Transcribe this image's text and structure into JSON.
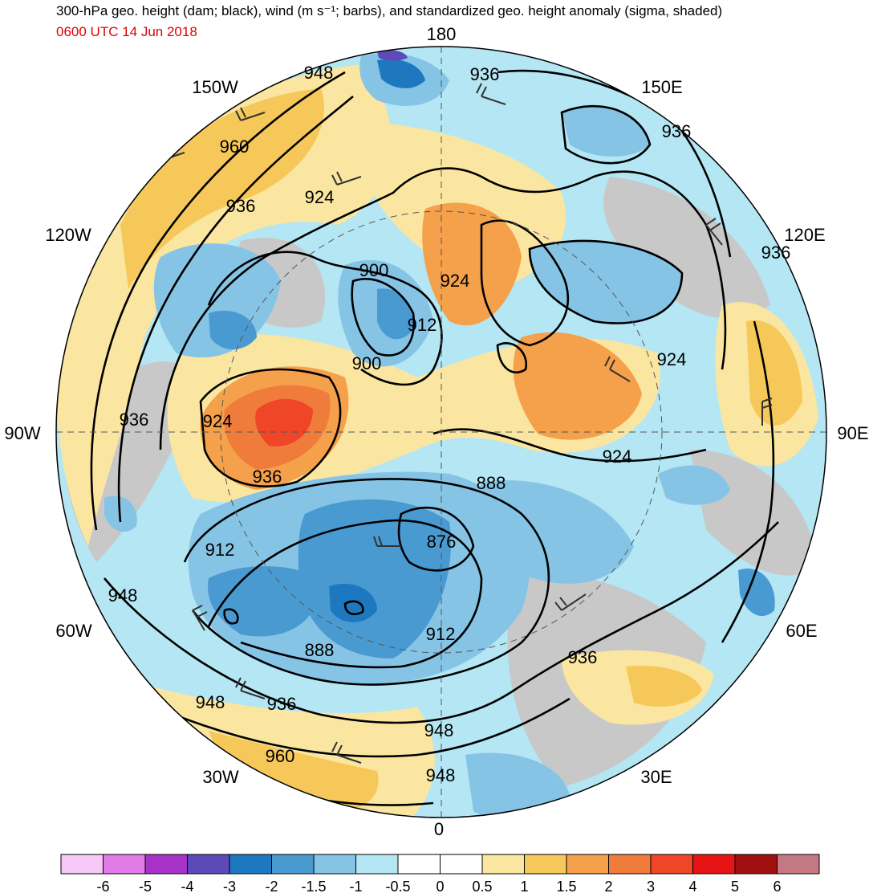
{
  "header": {
    "title": "300-hPa geo. height (dam; black), wind (m s⁻¹; barbs), and standardized geo. height anomaly (sigma, shaded)",
    "valid_time": "0600 UTC 14 Jun 2018"
  },
  "longitude_labels": {
    "n180": "180",
    "w150": "150W",
    "e150": "150E",
    "w120": "120W",
    "e120": "120E",
    "w90": "90W",
    "e90": "90E",
    "w60": "60W",
    "e60": "60E",
    "w30": "30W",
    "e30": "30E",
    "s0": "0"
  },
  "contour_labels": [
    "948",
    "936",
    "936",
    "960",
    "936",
    "924",
    "900",
    "924",
    "912",
    "900",
    "924",
    "936",
    "924",
    "936",
    "924",
    "888",
    "876",
    "912",
    "888",
    "936",
    "912",
    "948",
    "948",
    "936",
    "948",
    "960",
    "948"
  ],
  "colorbar": {
    "colors": [
      "#f6c8f6",
      "#df7ae6",
      "#a632c8",
      "#5b4ab8",
      "#1e78c0",
      "#4a9ad2",
      "#86c4e6",
      "#b4e6f4",
      "#ffffff",
      "#ffffff",
      "#fae6a0",
      "#f6c85a",
      "#f5a04a",
      "#f07c3c",
      "#f04628",
      "#e61414",
      "#a01010",
      "#c47884"
    ],
    "ticks": [
      "-6",
      "-5",
      "-4",
      "-3",
      "-2",
      "-1.5",
      "-1",
      "-0.5",
      "0",
      "0.5",
      "1",
      "1.5",
      "2",
      "3",
      "4",
      "5",
      "6"
    ]
  },
  "colors": {
    "land_mask": "#c8c8c8",
    "contour": "#000000",
    "date_text": "#e00000"
  }
}
